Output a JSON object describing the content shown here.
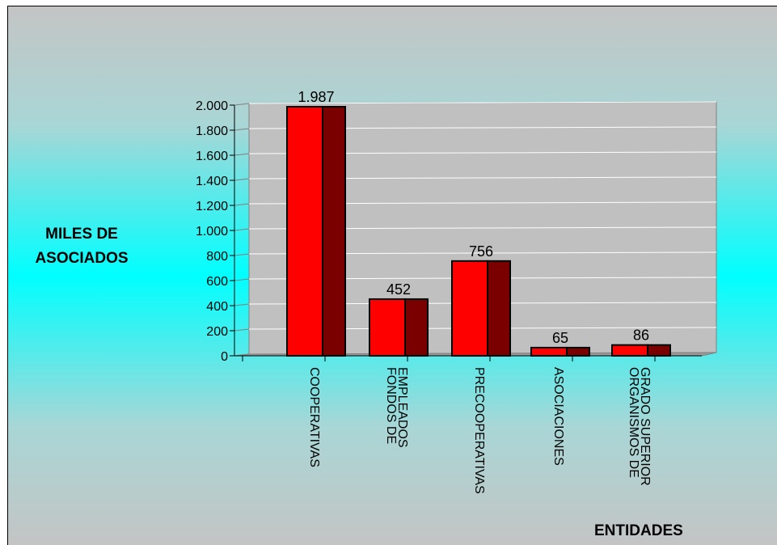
{
  "chart_data": {
    "type": "bar",
    "categories": [
      "COOPERATIVAS",
      "FONDOS DE EMPLEADOS",
      "PRECOOPERATIVAS",
      "ASOCIACIONES",
      "ORGANISMOS DE GRADO SUPERIOR"
    ],
    "category_lines": [
      [
        "COOPERATIVAS"
      ],
      [
        "FONDOS DE",
        "EMPLEADOS"
      ],
      [
        "PRECOOPERATIVAS"
      ],
      [
        "ASOCIACIONES"
      ],
      [
        "ORGANISMOS DE",
        "GRADO SUPERIOR"
      ]
    ],
    "values": [
      1987,
      452,
      756,
      65,
      86
    ],
    "value_labels": [
      "1.987",
      "452",
      "756",
      "65",
      "86"
    ],
    "ylim": [
      0,
      2000
    ],
    "yticks": [
      0,
      200,
      400,
      600,
      800,
      1000,
      1200,
      1400,
      1600,
      1800,
      2000
    ],
    "ytick_labels": [
      "0",
      "200",
      "400",
      "600",
      "800",
      "1.000",
      "1.200",
      "1.400",
      "1.600",
      "1.800",
      "2.000"
    ],
    "ylabel_lines": [
      "MILES DE",
      "ASOCIADOS"
    ],
    "xlabel": "ENTIDADES",
    "grid": true,
    "style": "3d",
    "colors": {
      "bar_front": "#ff0000",
      "bar_side": "#7a0000",
      "plot_wall": "#c0c0c0",
      "grid": "#ffffff"
    }
  }
}
